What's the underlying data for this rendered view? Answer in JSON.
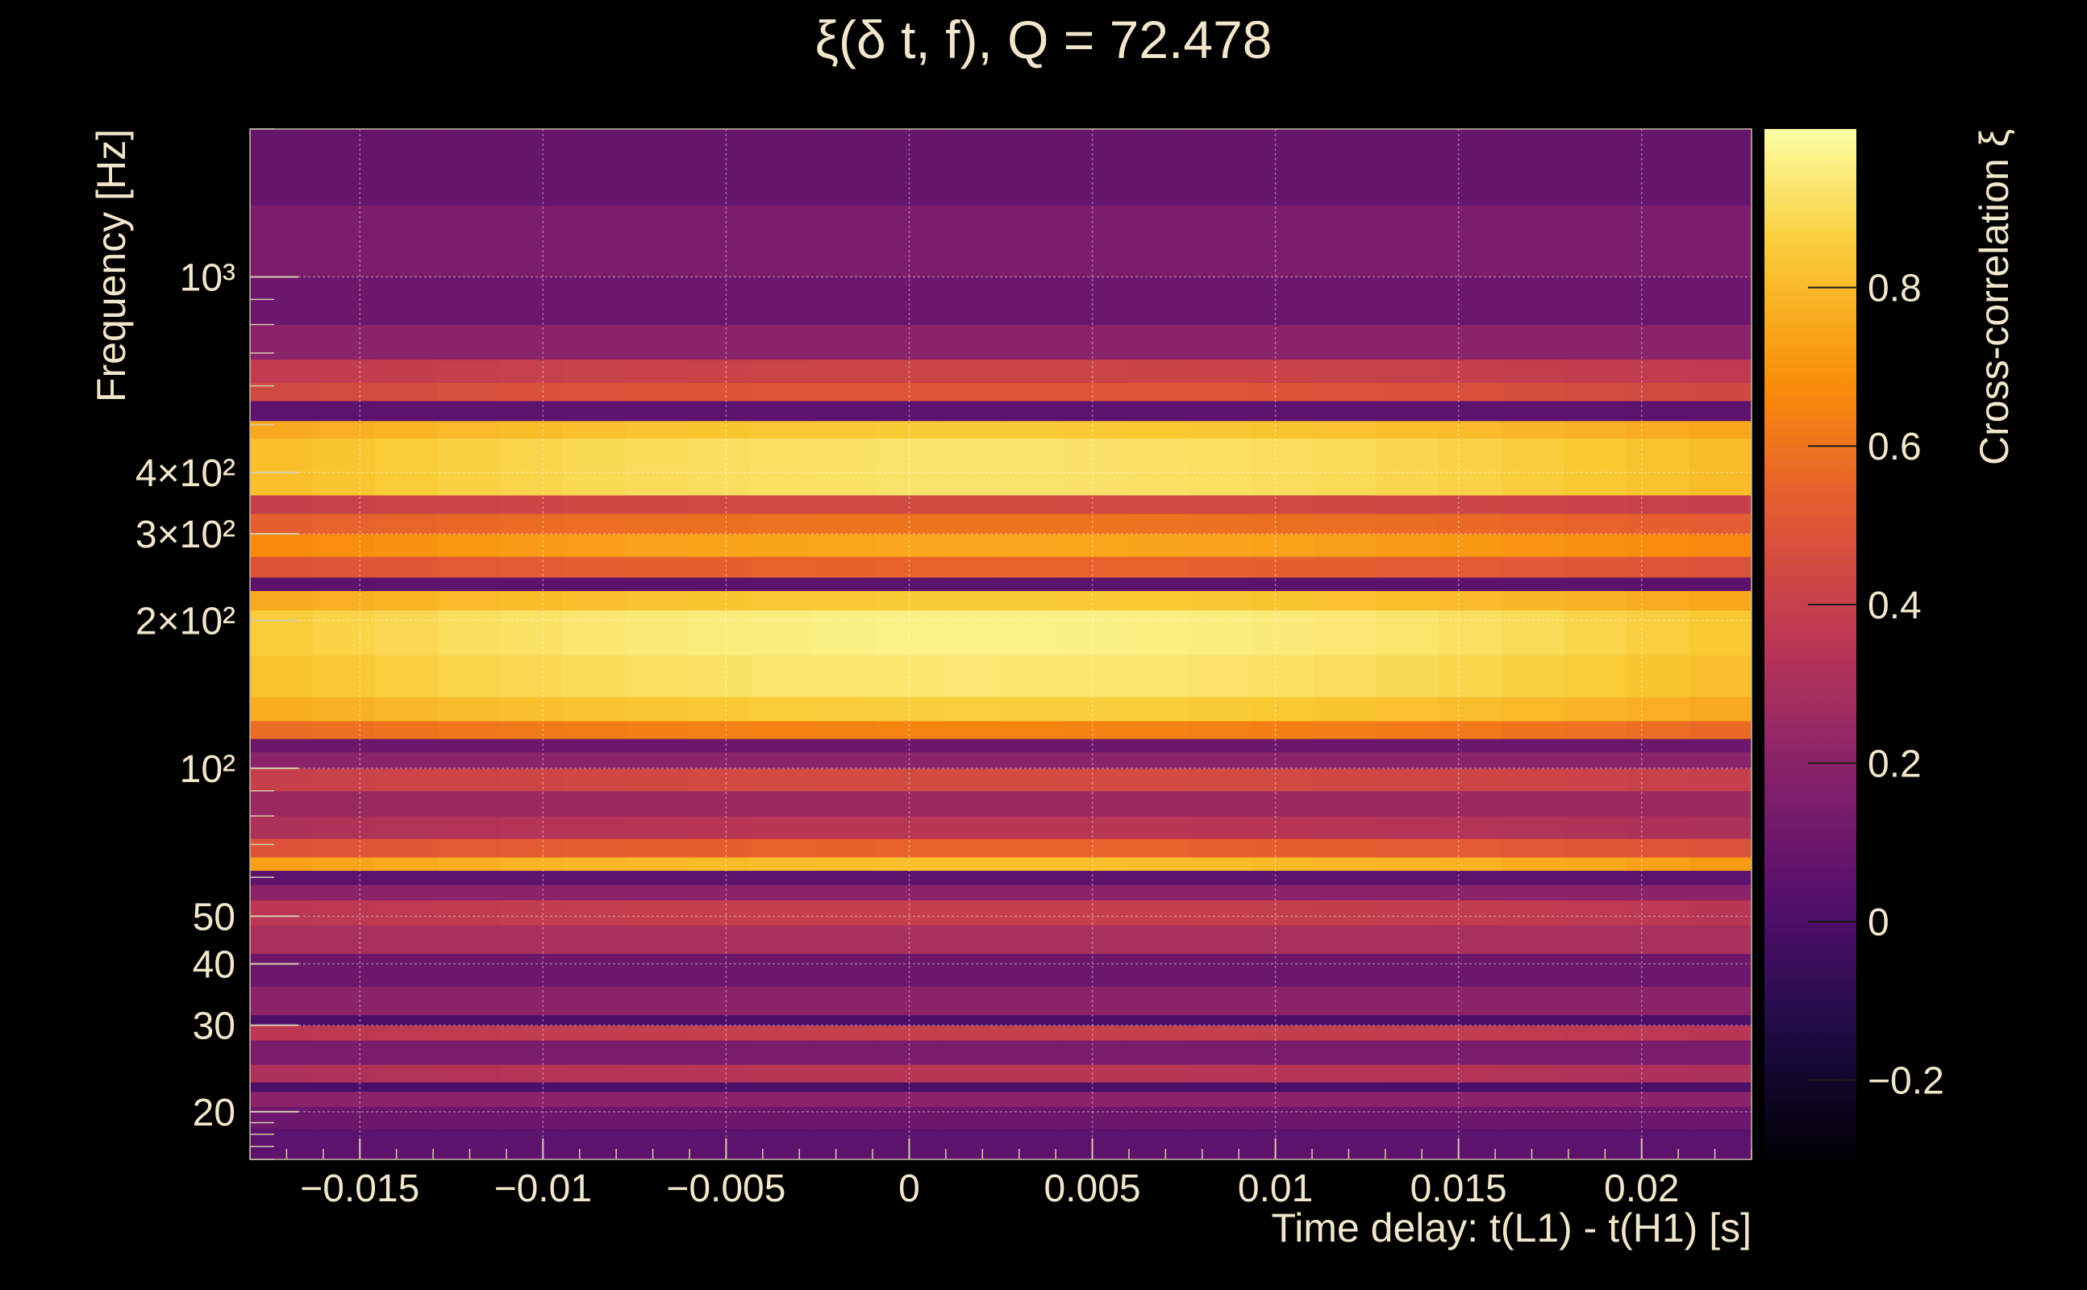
{
  "chart_data": {
    "type": "heatmap",
    "title": "ξ(δ t, f), Q = 72.478",
    "xlabel": "Time delay: t(L1) - t(H1) [s]",
    "ylabel": "Frequency [Hz]",
    "colorbar_label": "Cross-correlation ξ",
    "x_scale": "linear",
    "y_scale": "log",
    "xlim": [
      -0.018,
      0.023
    ],
    "ylim": [
      16,
      2000
    ],
    "zlim": [
      -0.3,
      1.0
    ],
    "x_ticks": [
      {
        "value": -0.015,
        "label": "−0.015"
      },
      {
        "value": -0.01,
        "label": "−0.01"
      },
      {
        "value": -0.005,
        "label": "−0.005"
      },
      {
        "value": 0,
        "label": "0"
      },
      {
        "value": 0.005,
        "label": "0.005"
      },
      {
        "value": 0.01,
        "label": "0.01"
      },
      {
        "value": 0.015,
        "label": "0.015"
      },
      {
        "value": 0.02,
        "label": "0.02"
      }
    ],
    "y_ticks": [
      {
        "value": 20,
        "label": "20"
      },
      {
        "value": 30,
        "label": "30"
      },
      {
        "value": 40,
        "label": "40"
      },
      {
        "value": 50,
        "label": "50"
      },
      {
        "value": 100,
        "label": "10²"
      },
      {
        "value": 200,
        "label": "2×10²"
      },
      {
        "value": 300,
        "label": "3×10²"
      },
      {
        "value": 400,
        "label": "4×10²"
      },
      {
        "value": 1000,
        "label": "10³"
      }
    ],
    "colorbar_ticks": [
      {
        "value": -0.2,
        "label": "−0.2"
      },
      {
        "value": 0,
        "label": "0"
      },
      {
        "value": 0.2,
        "label": "0.2"
      },
      {
        "value": 0.4,
        "label": "0.4"
      },
      {
        "value": 0.6,
        "label": "0.6"
      },
      {
        "value": 0.8,
        "label": "0.8"
      }
    ],
    "grid": true,
    "colormap": "inferno",
    "band_profile": [
      {
        "f_low": 16,
        "f_high": 18.5,
        "xi": 0.05
      },
      {
        "f_low": 18.5,
        "f_high": 20.5,
        "xi": 0.1
      },
      {
        "f_low": 20.5,
        "f_high": 22,
        "xi": 0.2
      },
      {
        "f_low": 22,
        "f_high": 23,
        "xi": 0.0
      },
      {
        "f_low": 23,
        "f_high": 25,
        "xi": 0.35
      },
      {
        "f_low": 25,
        "f_high": 28,
        "xi": 0.15
      },
      {
        "f_low": 28,
        "f_high": 30,
        "xi": 0.4
      },
      {
        "f_low": 30,
        "f_high": 31.5,
        "xi": 0.0
      },
      {
        "f_low": 31.5,
        "f_high": 36,
        "xi": 0.2
      },
      {
        "f_low": 36,
        "f_high": 42,
        "xi": 0.1
      },
      {
        "f_low": 42,
        "f_high": 48,
        "xi": 0.3
      },
      {
        "f_low": 48,
        "f_high": 54,
        "xi": 0.4
      },
      {
        "f_low": 54,
        "f_high": 58,
        "xi": 0.2
      },
      {
        "f_low": 58,
        "f_high": 62,
        "xi": 0.05
      },
      {
        "f_low": 62,
        "f_high": 66,
        "xi": 0.82
      },
      {
        "f_low": 66,
        "f_high": 72,
        "xi": 0.55
      },
      {
        "f_low": 72,
        "f_high": 80,
        "xi": 0.35
      },
      {
        "f_low": 80,
        "f_high": 90,
        "xi": 0.25
      },
      {
        "f_low": 90,
        "f_high": 100,
        "xi": 0.45
      },
      {
        "f_low": 100,
        "f_high": 108,
        "xi": 0.2
      },
      {
        "f_low": 108,
        "f_high": 115,
        "xi": 0.1
      },
      {
        "f_low": 115,
        "f_high": 125,
        "xi": 0.65
      },
      {
        "f_low": 125,
        "f_high": 140,
        "xi": 0.86
      },
      {
        "f_low": 140,
        "f_high": 170,
        "xi": 0.93
      },
      {
        "f_low": 170,
        "f_high": 210,
        "xi": 0.96
      },
      {
        "f_low": 210,
        "f_high": 230,
        "xi": 0.85
      },
      {
        "f_low": 230,
        "f_high": 245,
        "xi": 0.05
      },
      {
        "f_low": 245,
        "f_high": 270,
        "xi": 0.55
      },
      {
        "f_low": 270,
        "f_high": 300,
        "xi": 0.75
      },
      {
        "f_low": 300,
        "f_high": 330,
        "xi": 0.6
      },
      {
        "f_low": 330,
        "f_high": 360,
        "xi": 0.45
      },
      {
        "f_low": 360,
        "f_high": 470,
        "xi": 0.92
      },
      {
        "f_low": 470,
        "f_high": 510,
        "xi": 0.85
      },
      {
        "f_low": 510,
        "f_high": 560,
        "xi": 0.05
      },
      {
        "f_low": 560,
        "f_high": 610,
        "xi": 0.5
      },
      {
        "f_low": 610,
        "f_high": 680,
        "xi": 0.42
      },
      {
        "f_low": 680,
        "f_high": 800,
        "xi": 0.2
      },
      {
        "f_low": 800,
        "f_high": 1000,
        "xi": 0.1
      },
      {
        "f_low": 1000,
        "f_high": 1400,
        "xi": 0.15
      },
      {
        "f_low": 1400,
        "f_high": 2000,
        "xi": 0.08
      }
    ],
    "peak_time_delay": 0.002
  }
}
